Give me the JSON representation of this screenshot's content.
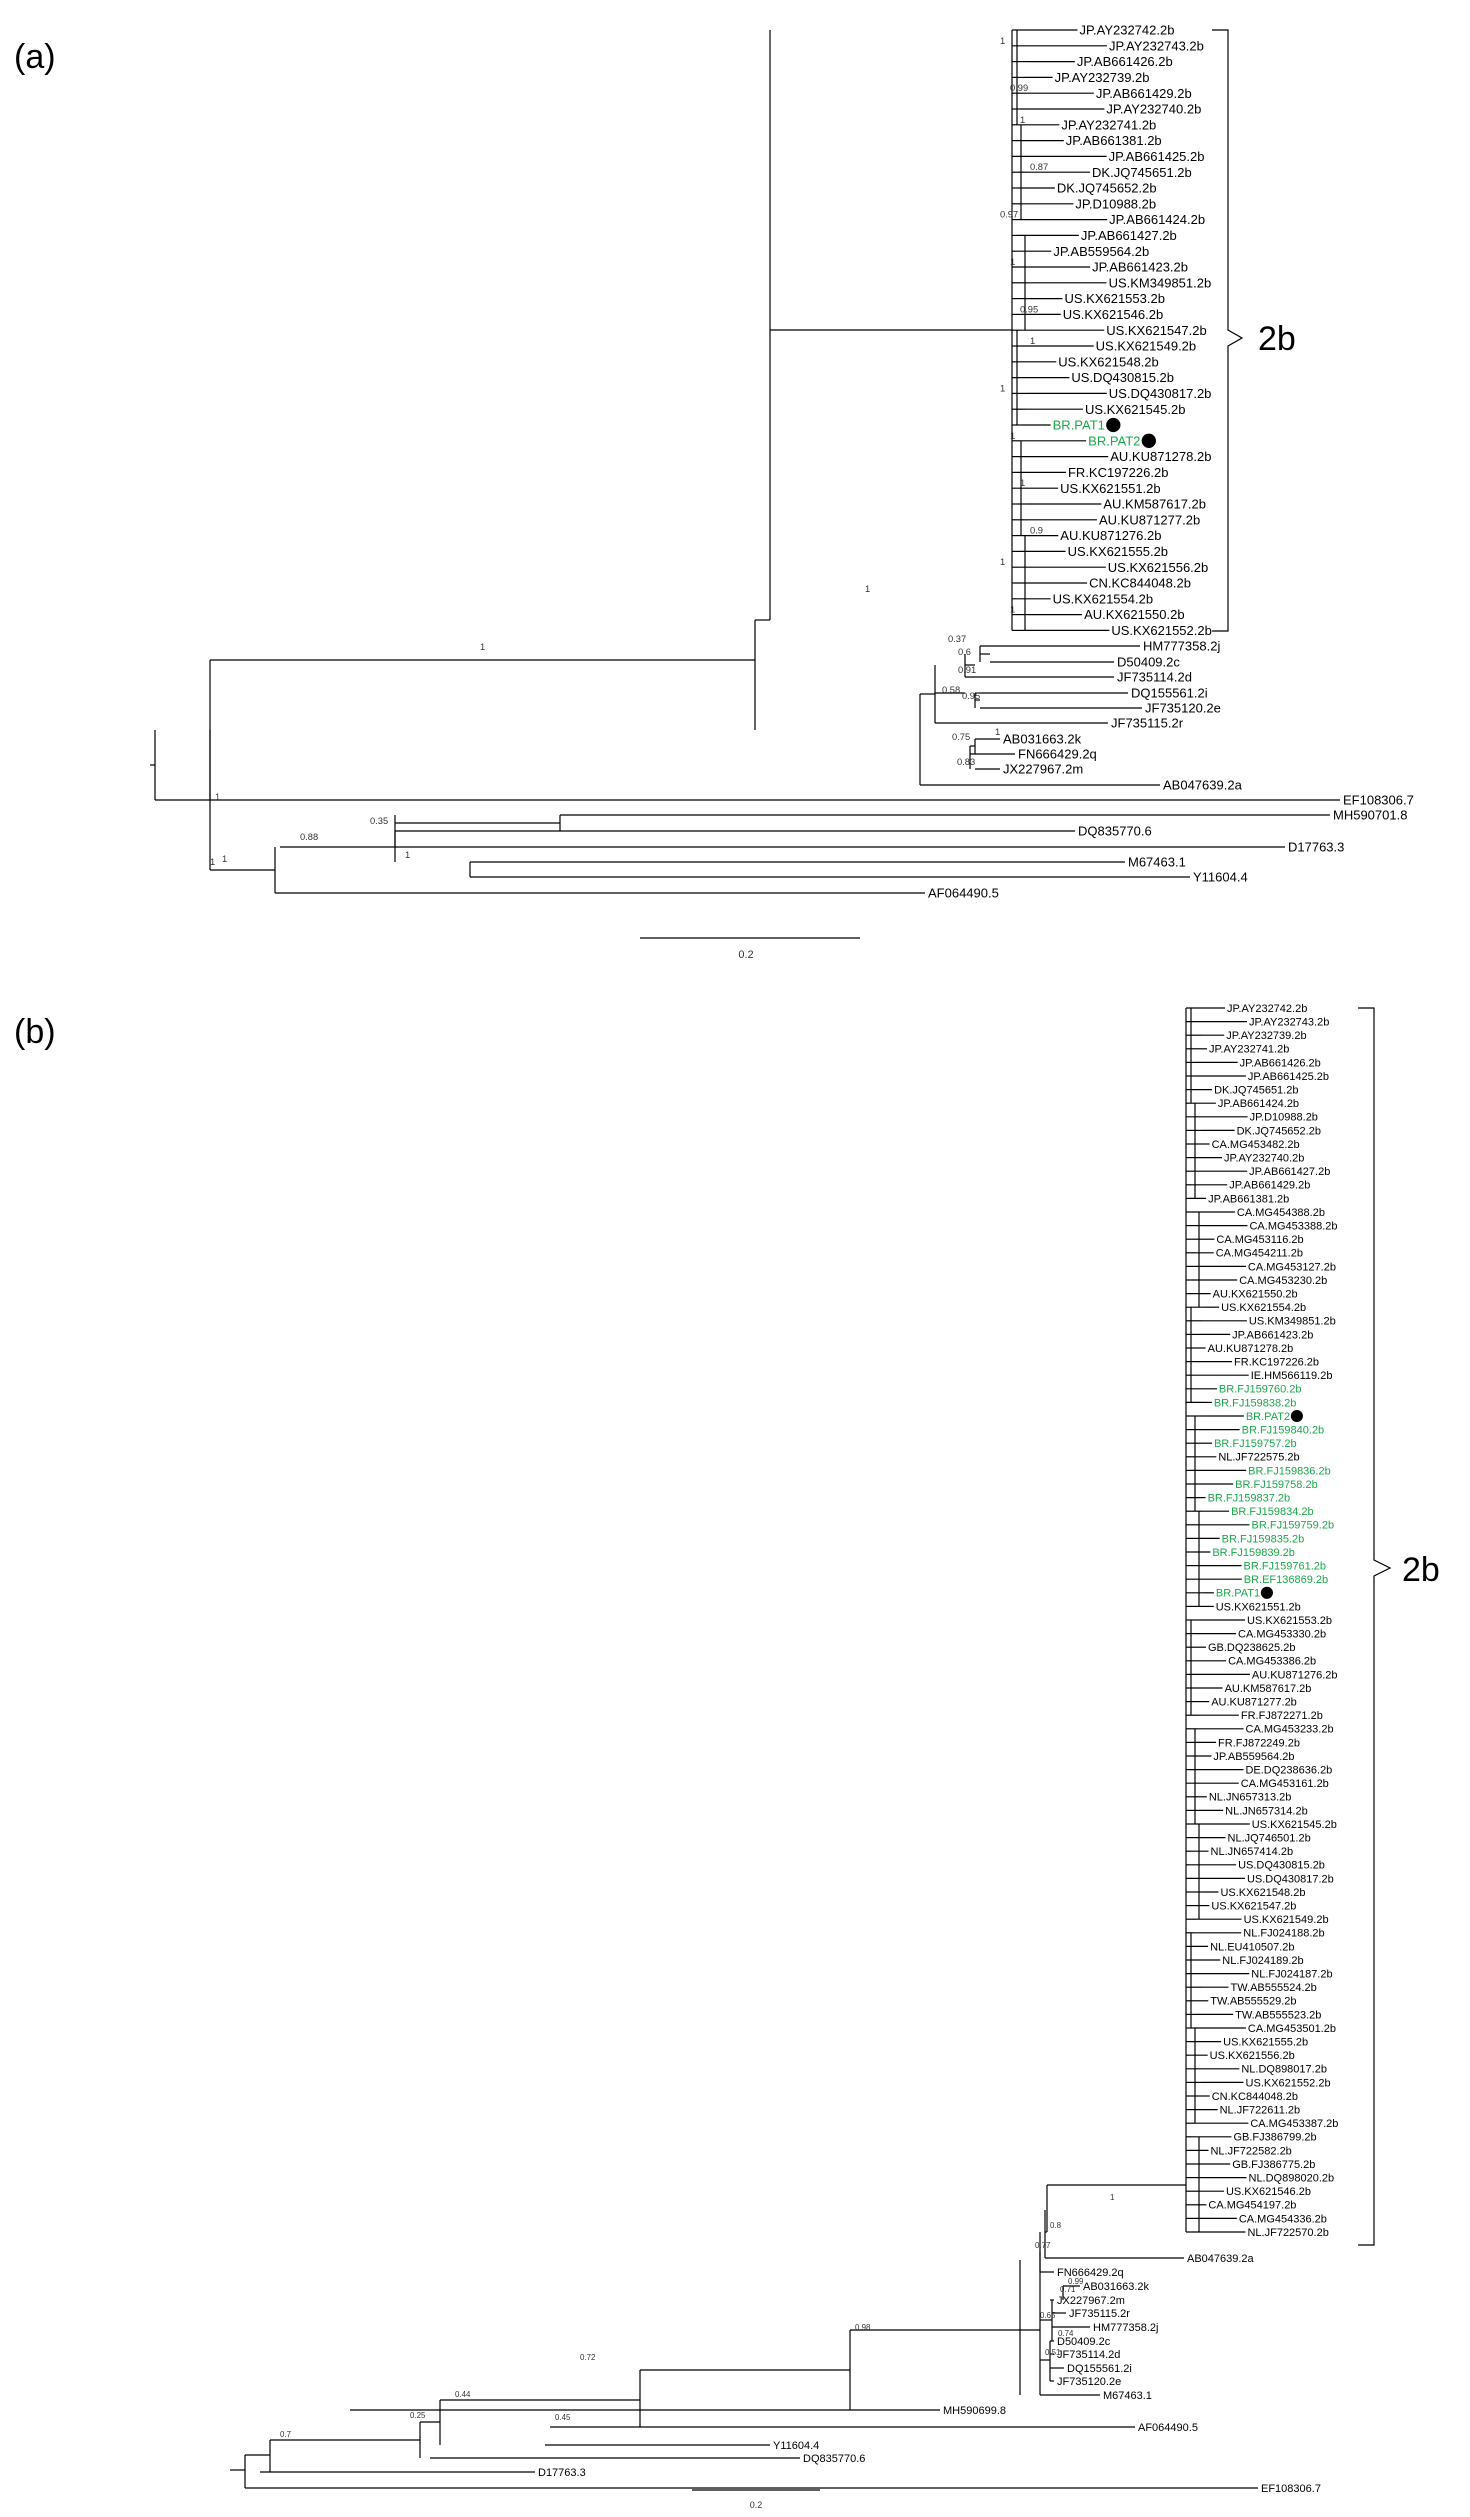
{
  "panels": [
    {
      "label": "(a)",
      "clade_label": "2b",
      "scale_label": "0.2",
      "leaves": [
        "JP.AY232742.2b",
        "JP.AY232743.2b",
        "JP.AB661426.2b",
        "JP.AY232739.2b",
        "JP.AB661429.2b",
        "JP.AY232740.2b",
        "JP.AY232741.2b",
        "JP.AB661381.2b",
        "JP.AB661425.2b",
        "DK.JQ745651.2b",
        "DK.JQ745652.2b",
        "JP.D10988.2b",
        "JP.AB661424.2b",
        "JP.AB661427.2b",
        "JP.AB559564.2b",
        "JP.AB661423.2b",
        "US.KM349851.2b",
        "US.KX621553.2b",
        "US.KX621546.2b",
        "US.KX621547.2b",
        "US.KX621549.2b",
        "US.KX621548.2b",
        "US.DQ430815.2b",
        "US.DQ430817.2b",
        "US.KX621545.2b",
        "BR.PAT1",
        "BR.PAT2",
        "AU.KU871278.2b",
        "FR.KC197226.2b",
        "US.KX621551.2b",
        "AU.KM587617.2b",
        "AU.KU871277.2b",
        "AU.KU871276.2b",
        "US.KX621555.2b",
        "US.KX621556.2b",
        "CN.KC844048.2b",
        "US.KX621554.2b",
        "AU.KX621550.2b",
        "US.KX621552.2b"
      ],
      "outgroup": [
        "HM777358.2j",
        "D50409.2c",
        "JF735114.2d",
        "DQ155561.2i",
        "JF735120.2e",
        "JF735115.2r",
        "AB031663.2k",
        "FN666429.2q",
        "JX227967.2m",
        "AB047639.2a",
        "EF108306.7",
        "MH590701.8",
        "DQ835770.6",
        "D17763.3",
        "M67463.1",
        "Y11604.4",
        "AF064490.5"
      ],
      "highlighted": [
        "BR.PAT1",
        "BR.PAT2"
      ],
      "internal_supports": [
        "1",
        "0.99",
        "1",
        "0.87",
        "0.97",
        "1",
        "0.95",
        "1",
        "1",
        "1",
        "1",
        "0.9",
        "1",
        "1"
      ],
      "backbone_supports": [
        "1",
        "1",
        "1",
        "0.37",
        "0.6",
        "0.91",
        "0.58",
        "0.95",
        "1",
        "0.75",
        "0.83",
        "1",
        "0.35",
        "0.88",
        "1",
        "1"
      ]
    },
    {
      "label": "(b)",
      "clade_label": "2b",
      "scale_label": "0.2",
      "leaves": [
        "JP.AY232742.2b",
        "JP.AY232743.2b",
        "JP.AY232739.2b",
        "JP.AY232741.2b",
        "JP.AB661426.2b",
        "JP.AB661425.2b",
        "DK.JQ745651.2b",
        "JP.AB661424.2b",
        "JP.D10988.2b",
        "DK.JQ745652.2b",
        "CA.MG453482.2b",
        "JP.AY232740.2b",
        "JP.AB661427.2b",
        "JP.AB661429.2b",
        "JP.AB661381.2b",
        "CA.MG454388.2b",
        "CA.MG453388.2b",
        "CA.MG453116.2b",
        "CA.MG454211.2b",
        "CA.MG453127.2b",
        "CA.MG453230.2b",
        "AU.KX621550.2b",
        "US.KX621554.2b",
        "US.KM349851.2b",
        "JP.AB661423.2b",
        "AU.KU871278.2b",
        "FR.KC197226.2b",
        "IE.HM566119.2b",
        "BR.FJ159760.2b",
        "BR.FJ159838.2b",
        "BR.PAT2",
        "BR.FJ159840.2b",
        "BR.FJ159757.2b",
        "NL.JF722575.2b",
        "BR.FJ159836.2b",
        "BR.FJ159758.2b",
        "BR.FJ159837.2b",
        "BR.FJ159834.2b",
        "BR.FJ159759.2b",
        "BR.FJ159835.2b",
        "BR.FJ159839.2b",
        "BR.FJ159761.2b",
        "BR.EF136869.2b",
        "BR.PAT1",
        "US.KX621551.2b",
        "US.KX621553.2b",
        "CA.MG453330.2b",
        "GB.DQ238625.2b",
        "CA.MG453386.2b",
        "AU.KU871276.2b",
        "AU.KM587617.2b",
        "AU.KU871277.2b",
        "FR.FJ872271.2b",
        "CA.MG453233.2b",
        "FR.FJ872249.2b",
        "JP.AB559564.2b",
        "DE.DQ238636.2b",
        "CA.MG453161.2b",
        "NL.JN657313.2b",
        "NL.JN657314.2b",
        "US.KX621545.2b",
        "NL.JQ746501.2b",
        "NL.JN657414.2b",
        "US.DQ430815.2b",
        "US.DQ430817.2b",
        "US.KX621548.2b",
        "US.KX621547.2b",
        "US.KX621549.2b",
        "NL.FJ024188.2b",
        "NL.EU410507.2b",
        "NL.FJ024189.2b",
        "NL.FJ024187.2b",
        "TW.AB555524.2b",
        "TW.AB555529.2b",
        "TW.AB555523.2b",
        "CA.MG453501.2b",
        "US.KX621555.2b",
        "US.KX621556.2b",
        "NL.DQ898017.2b",
        "US.KX621552.2b",
        "CN.KC844048.2b",
        "NL.JF722611.2b",
        "CA.MG453387.2b",
        "GB.FJ386799.2b",
        "NL.JF722582.2b",
        "GB.FJ386775.2b",
        "NL.DQ898020.2b",
        "US.KX621546.2b",
        "CA.MG454197.2b",
        "CA.MG454336.2b",
        "NL.JF722570.2b"
      ],
      "outgroup": [
        "AB047639.2a",
        "FN666429.2q",
        "AB031663.2k",
        "JX227967.2m",
        "JF735115.2r",
        "HM777358.2j",
        "D50409.2c",
        "JF735114.2d",
        "DQ155561.2i",
        "JF735120.2e",
        "M67463.1",
        "MH590699.8",
        "AF064490.5",
        "Y11604.4",
        "DQ835770.6",
        "D17763.3",
        "EF108306.7"
      ],
      "highlighted": [
        "BR.FJ159760.2b",
        "BR.FJ159838.2b",
        "BR.PAT2",
        "BR.FJ159840.2b",
        "BR.FJ159757.2b",
        "BR.FJ159836.2b",
        "BR.FJ159758.2b",
        "BR.FJ159837.2b",
        "BR.FJ159834.2b",
        "BR.FJ159759.2b",
        "BR.FJ159835.2b",
        "BR.FJ159839.2b",
        "BR.FJ159761.2b",
        "BR.EF136869.2b",
        "BR.PAT1"
      ],
      "marked_with_dot": [
        "BR.PAT2",
        "BR.PAT1"
      ],
      "backbone_supports": [
        "1",
        "0.8",
        "0.77",
        "0.98",
        "0.72",
        "0.44",
        "0.25",
        "0.7",
        "0.45",
        "0.65",
        "0.74",
        "0.71",
        "0.99",
        "0.51"
      ]
    }
  ]
}
